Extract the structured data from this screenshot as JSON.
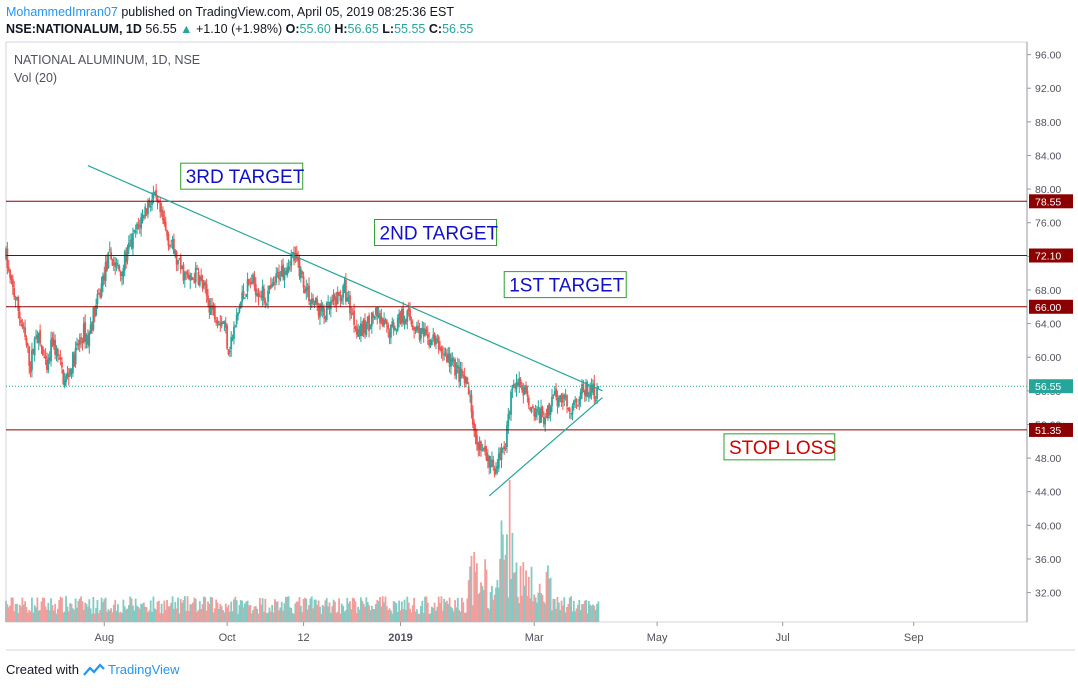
{
  "header": {
    "author": "MohammedImran07",
    "published": "published on TradingView.com, April 05, 2019 08:25:36 EST",
    "symbol": "NSE:NATIONALUM, 1D",
    "last": "56.55",
    "change": "+1.10 (+1.98%)",
    "o_label": "O:",
    "o_value": "55.60",
    "h_label": "H:",
    "h_value": "56.65",
    "l_label": "L:",
    "l_value": "55.55",
    "c_label": "C:",
    "c_value": "56.55"
  },
  "footer": {
    "prefix": "Created with",
    "brand": "TradingView"
  },
  "colors": {
    "up": "#26a69a",
    "down": "#ef5350",
    "vol_up": "#80cbc4",
    "vol_down": "#f19e9c",
    "level_line": "#8b0000",
    "trend_line": "#26a69a",
    "target_text": "#1010c8",
    "stop_text": "#d00000",
    "box_border": "#2e9e2e"
  },
  "chart_data": {
    "type": "candlestick",
    "title": "NATIONAL ALUMINUM, 1D, NSE",
    "indicator": "Vol (20)",
    "y_ticks": [
      "32.00",
      "36.00",
      "40.00",
      "44.00",
      "48.00",
      "52.00",
      "56.00",
      "60.00",
      "64.00",
      "68.00",
      "72.00",
      "76.00",
      "80.00",
      "84.00",
      "88.00",
      "92.00",
      "96.00"
    ],
    "y_range": [
      28.5,
      97.5
    ],
    "x_ticks": [
      {
        "label": "Aug",
        "bar": 72
      },
      {
        "label": "Oct",
        "bar": 162
      },
      {
        "label": "12",
        "bar": 218
      },
      {
        "label": "2019",
        "bar": 289
      },
      {
        "label": "Mar",
        "bar": 387
      },
      {
        "label": "May",
        "bar": 477
      },
      {
        "label": "Jul",
        "bar": 569
      },
      {
        "label": "Sep",
        "bar": 665
      }
    ],
    "x_bar_range": [
      0,
      748
    ],
    "levels": [
      {
        "value": 78.55,
        "label": "78.55"
      },
      {
        "value": 72.1,
        "label": "72.10"
      },
      {
        "value": 66.0,
        "label": "66.00"
      },
      {
        "value": 51.35,
        "label": "51.35"
      }
    ],
    "last_price": {
      "value": 56.55,
      "label": "56.55"
    },
    "trendlines": [
      {
        "from": [
          60,
          82.8
        ],
        "to": [
          437,
          56.0
        ]
      },
      {
        "from": [
          354,
          43.5
        ],
        "to": [
          437,
          55.2
        ]
      }
    ],
    "annotations": [
      {
        "text": "3RD TARGET",
        "bar": 128,
        "value": 81.3,
        "kind": "target"
      },
      {
        "text": "2ND TARGET",
        "bar": 270,
        "value": 74.6,
        "kind": "target"
      },
      {
        "text": "1ST TARGET",
        "bar": 365,
        "value": 68.4,
        "kind": "target"
      },
      {
        "text": "STOP LOSS",
        "bar": 526,
        "value": 49.1,
        "kind": "stop"
      }
    ],
    "price_path": [
      [
        0,
        72
      ],
      [
        3,
        69
      ],
      [
        7,
        67
      ],
      [
        10,
        65
      ],
      [
        14,
        62
      ],
      [
        18,
        59
      ],
      [
        22,
        63
      ],
      [
        26,
        61
      ],
      [
        30,
        58
      ],
      [
        34,
        62
      ],
      [
        38,
        60
      ],
      [
        43,
        57
      ],
      [
        48,
        59
      ],
      [
        52,
        61
      ],
      [
        57,
        63
      ],
      [
        60,
        62
      ],
      [
        64,
        65
      ],
      [
        68,
        67
      ],
      [
        72,
        70
      ],
      [
        76,
        72
      ],
      [
        80,
        71
      ],
      [
        84,
        70
      ],
      [
        88,
        72
      ],
      [
        93,
        74
      ],
      [
        98,
        76
      ],
      [
        103,
        78
      ],
      [
        108,
        79
      ],
      [
        113,
        77
      ],
      [
        117,
        75
      ],
      [
        122,
        73
      ],
      [
        126,
        71
      ],
      [
        130,
        70
      ],
      [
        135,
        69
      ],
      [
        140,
        70
      ],
      [
        145,
        68
      ],
      [
        150,
        66
      ],
      [
        155,
        65
      ],
      [
        160,
        64
      ],
      [
        163,
        61
      ],
      [
        167,
        63
      ],
      [
        171,
        66
      ],
      [
        175,
        68
      ],
      [
        180,
        69
      ],
      [
        185,
        68
      ],
      [
        190,
        67
      ],
      [
        195,
        68
      ],
      [
        200,
        70
      ],
      [
        205,
        71
      ],
      [
        210,
        72
      ],
      [
        214,
        71
      ],
      [
        218,
        69
      ],
      [
        223,
        67
      ],
      [
        228,
        66
      ],
      [
        233,
        65
      ],
      [
        238,
        66
      ],
      [
        243,
        67
      ],
      [
        248,
        68
      ],
      [
        252,
        66
      ],
      [
        256,
        64
      ],
      [
        260,
        63
      ],
      [
        265,
        64
      ],
      [
        270,
        65
      ],
      [
        275,
        64
      ],
      [
        280,
        63
      ],
      [
        285,
        64
      ],
      [
        290,
        65
      ],
      [
        294,
        65
      ],
      [
        298,
        64
      ],
      [
        303,
        63
      ],
      [
        308,
        62
      ],
      [
        313,
        62
      ],
      [
        318,
        61
      ],
      [
        323,
        60
      ],
      [
        328,
        59
      ],
      [
        332,
        58
      ],
      [
        336,
        57
      ],
      [
        340,
        55
      ],
      [
        343,
        52
      ],
      [
        346,
        50
      ],
      [
        349,
        49
      ],
      [
        352,
        48
      ],
      [
        355,
        47
      ],
      [
        358,
        47
      ],
      [
        362,
        48
      ],
      [
        366,
        50
      ],
      [
        369,
        54
      ],
      [
        372,
        57
      ],
      [
        375,
        57
      ],
      [
        378,
        56
      ],
      [
        382,
        55
      ],
      [
        386,
        54
      ],
      [
        390,
        53
      ],
      [
        394,
        53
      ],
      [
        398,
        54
      ],
      [
        402,
        55
      ],
      [
        406,
        55
      ],
      [
        410,
        55
      ],
      [
        414,
        54
      ],
      [
        418,
        55
      ],
      [
        422,
        56
      ],
      [
        426,
        56
      ],
      [
        429,
        56
      ],
      [
        432,
        56
      ],
      [
        434,
        56.55
      ]
    ],
    "bars_count": 435,
    "volume_range": [
      0,
      1
    ]
  }
}
